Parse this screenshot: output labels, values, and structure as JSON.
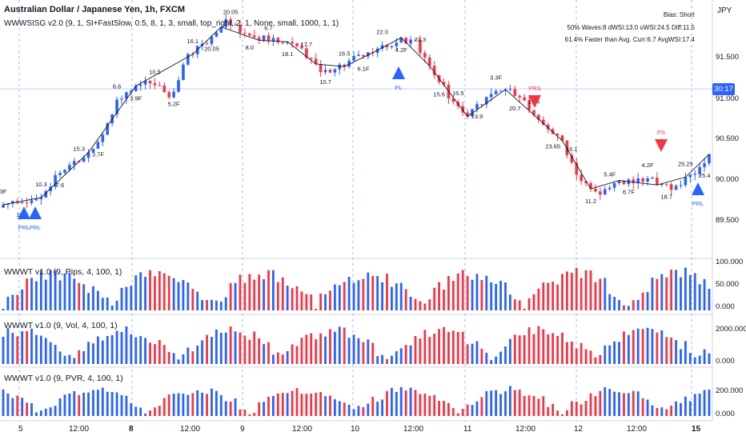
{
  "header": {
    "symbol_line": "Australian Dollar / Japanese Yen, 1h, FXCM",
    "indicator_line": "WWWSISG v2.0 (9, 1, SI+FastSlow, 0.5, 8, 1, 3, small, top_right, 2, 1, None, small, 1000, 1, 1)"
  },
  "stats": {
    "line1": "Bias: Short",
    "line2": "50% Waves:8 dWSI:13.0 uWSI:24.5 Diff:11.5",
    "line3": "61.4% Faster than Avg. Curr:6.7 AvgWSI:17.4"
  },
  "price_axis": {
    "currency": "JPY",
    "ticks": [
      "91.500",
      "91.000",
      "90.500",
      "90.000",
      "89.500"
    ],
    "countdown": "30:17"
  },
  "panels": [
    {
      "title": "WWWT v1.0 (9, Pips, 4, 100, 1)",
      "ticks": [
        "100.000",
        "50.000",
        "0.000"
      ]
    },
    {
      "title": "WWWT v1.0 (9, Vol, 4, 100, 1)",
      "ticks": [
        "2000.000",
        "0.000"
      ]
    },
    {
      "title": "WWWT v1.0 (9, PVR, 4, 100, 1)",
      "ticks": [
        "200.000",
        "0.000"
      ]
    }
  ],
  "time_axis": [
    {
      "label": "5",
      "bold": false
    },
    {
      "label": "12:00",
      "bold": false
    },
    {
      "label": "8",
      "bold": true
    },
    {
      "label": "12:00",
      "bold": false
    },
    {
      "label": "9",
      "bold": false
    },
    {
      "label": "12:00",
      "bold": false
    },
    {
      "label": "10",
      "bold": false
    },
    {
      "label": "12:00",
      "bold": false
    },
    {
      "label": "11",
      "bold": false
    },
    {
      "label": "12:00",
      "bold": false
    },
    {
      "label": "12",
      "bold": false
    },
    {
      "label": "12:00",
      "bold": false
    },
    {
      "label": "15",
      "bold": true
    }
  ],
  "wave_labels": [
    "3F",
    "16.6",
    "10.3",
    "7.6",
    "15.3",
    "3.7F",
    "6.6",
    "3.9F",
    "10.5",
    "5.2F",
    "16.1",
    "20.05",
    "20.05",
    "8.0",
    "6.7",
    "18.1",
    "17.7",
    "10.7",
    "16.5",
    "6.1F",
    "22.0",
    "4.2F",
    "23.3",
    "15.6",
    "16.5",
    "13.9",
    "3.3F",
    "20.7",
    "10.4",
    "23.65",
    "16.1",
    "11.2",
    "5.4F",
    "6.7F",
    "4.2F",
    "18.7",
    "25.25",
    "25.4"
  ],
  "signals": [
    {
      "label": "PRL",
      "type": "buy"
    },
    {
      "label": "PRL",
      "type": "buy"
    },
    {
      "label": "PL",
      "type": "buy"
    },
    {
      "label": "PRS",
      "type": "sell"
    },
    {
      "label": "PS",
      "type": "sell"
    },
    {
      "label": "PRL",
      "type": "buy"
    }
  ],
  "colors": {
    "bull": "#2962ff",
    "bear": "#f23645",
    "grid_dash": "#2962ff",
    "zigzag": "#131722"
  },
  "chart_data": {
    "type": "candlestick",
    "y_range": [
      89.3,
      92.0
    ],
    "price_samples": [
      89.9,
      89.85,
      89.95,
      90.2,
      90.3,
      90.45,
      90.9,
      91.1,
      91.15,
      91.0,
      91.45,
      91.55,
      91.78,
      91.65,
      91.6,
      91.55,
      91.5,
      91.25,
      91.3,
      91.4,
      91.45,
      91.55,
      91.6,
      91.3,
      91.0,
      90.8,
      90.98,
      91.08,
      90.95,
      90.7,
      90.55,
      90.15,
      89.98,
      90.1,
      90.1,
      90.12,
      90.05,
      90.15,
      90.35
    ],
    "series": [
      {
        "name": "Pips",
        "range": [
          0,
          100
        ]
      },
      {
        "name": "Vol",
        "range": [
          0,
          2000
        ]
      },
      {
        "name": "PVR",
        "range": [
          0,
          200
        ]
      }
    ]
  }
}
